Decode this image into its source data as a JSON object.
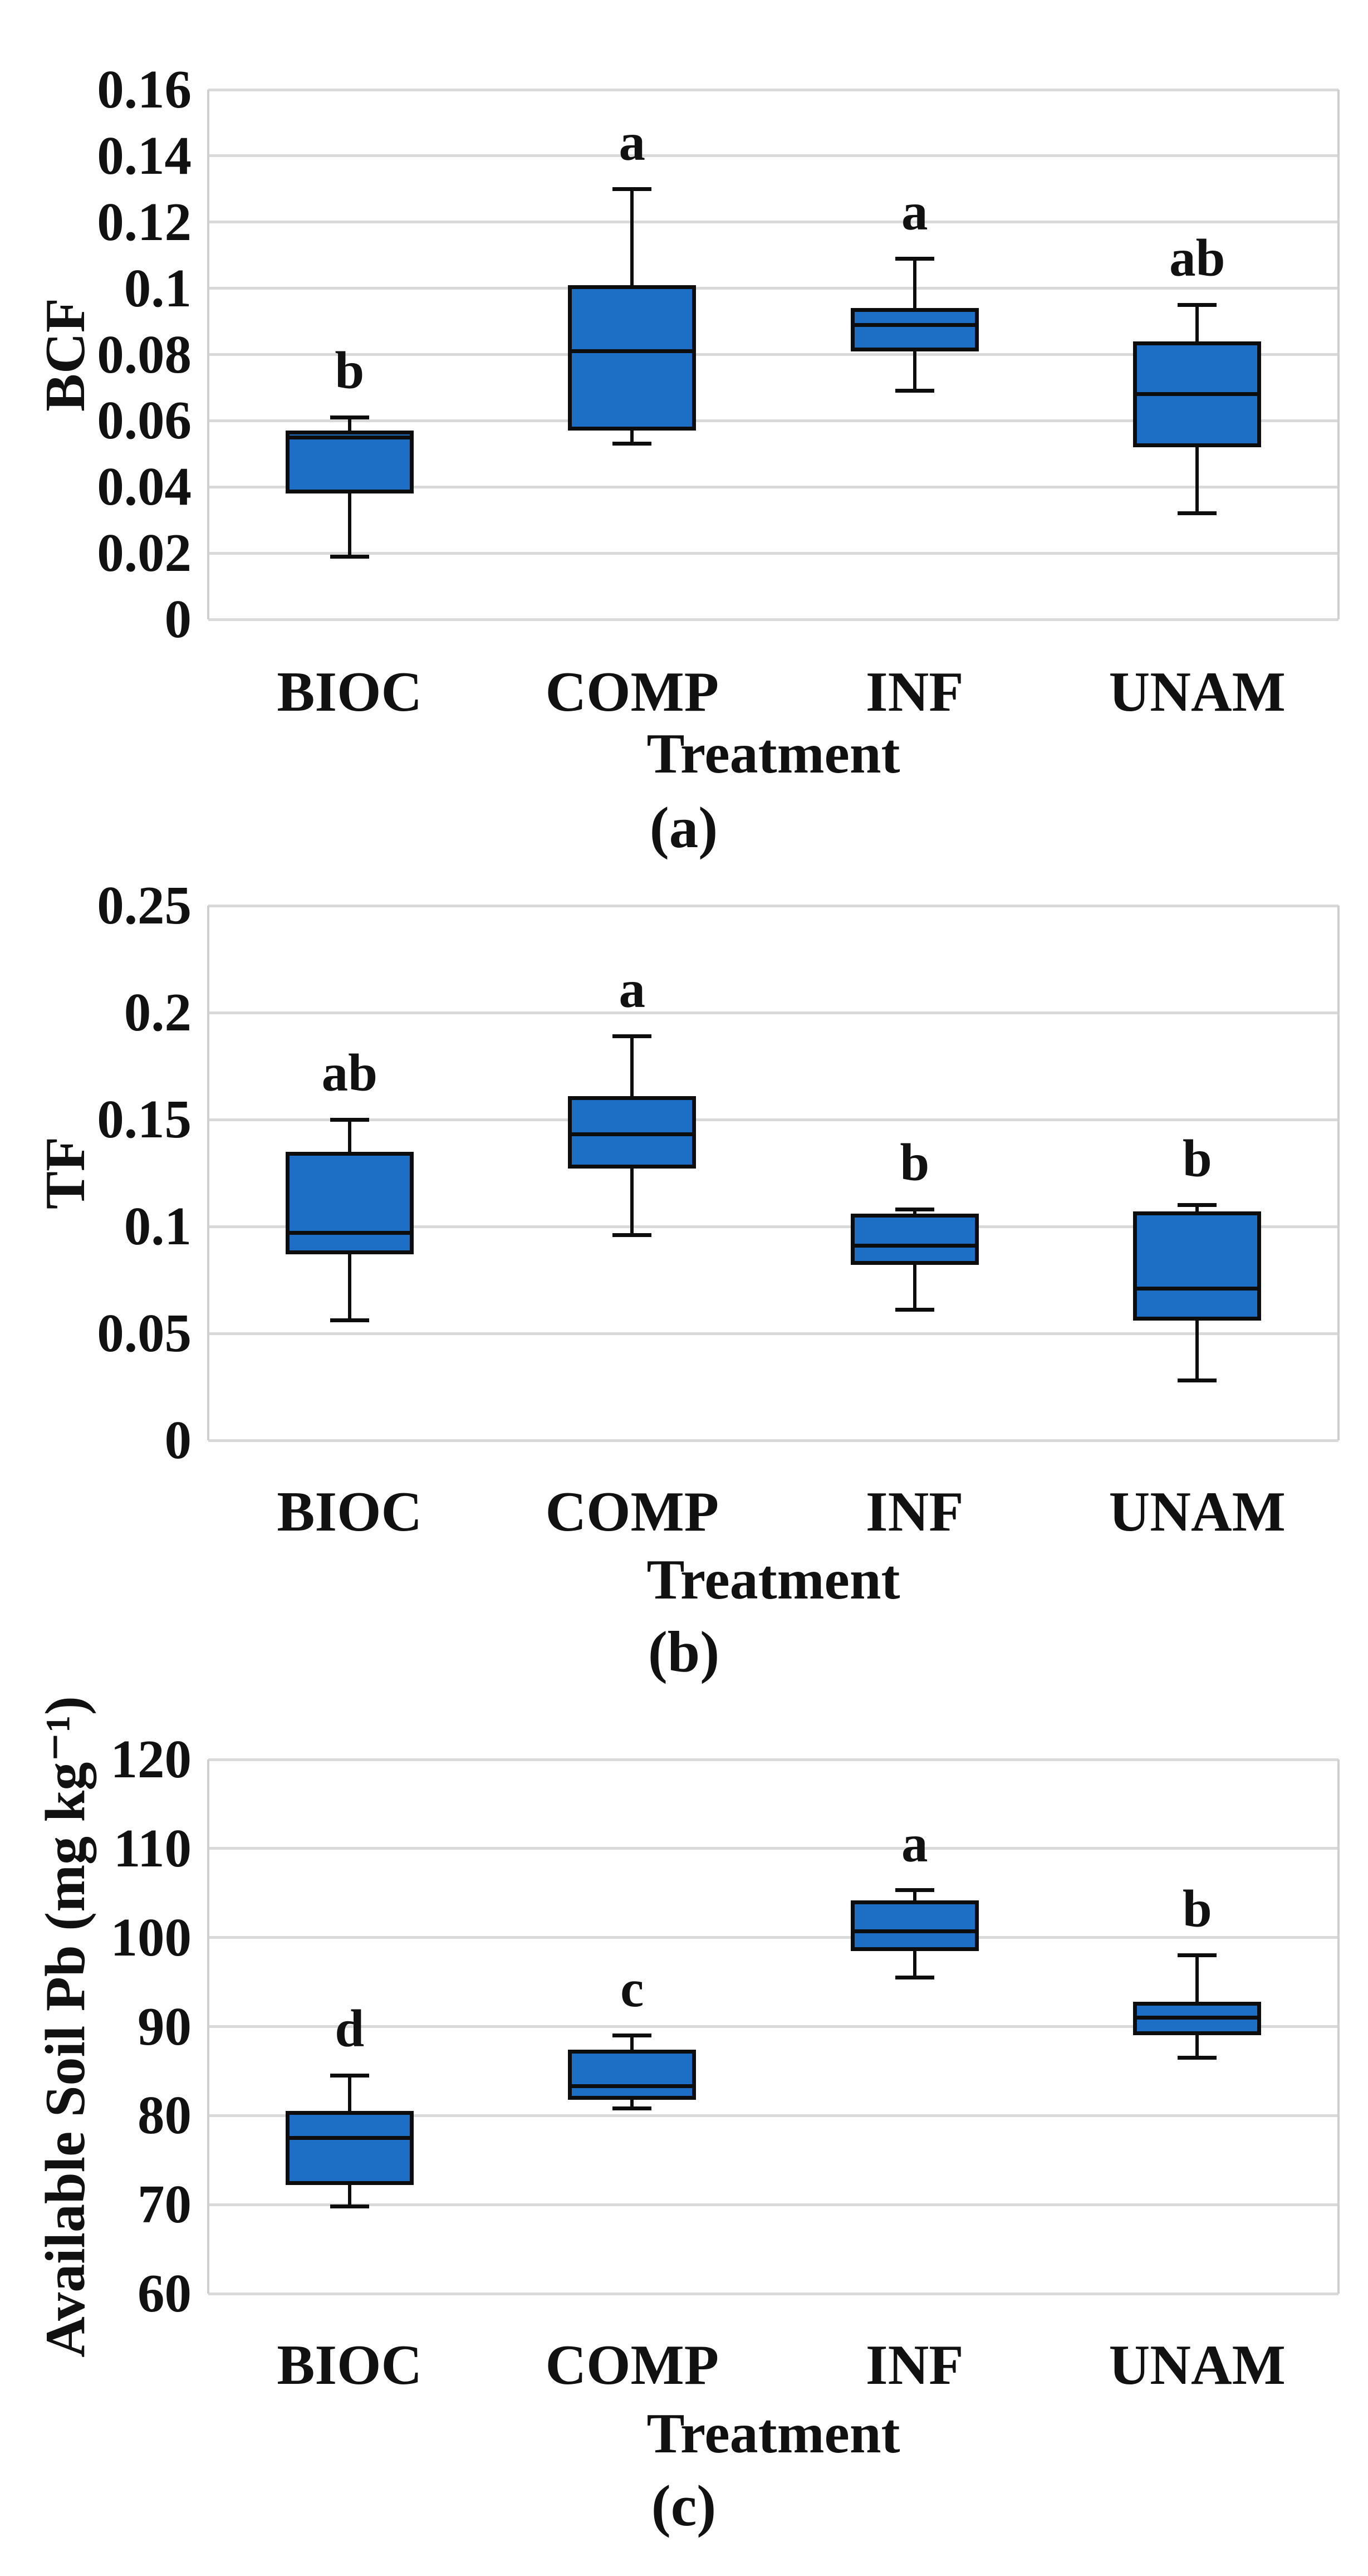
{
  "figure": {
    "background": "#ffffff",
    "box_fill": "#1d6fc6",
    "box_border": "#0d0d0d",
    "gridline_color": "#d9d9d9",
    "axis_border_color": "#cfcfcf",
    "categories": [
      "BIOC",
      "COMP",
      "INF",
      "UNAM"
    ],
    "x_axis_title": "Treatment"
  },
  "chart_data": [
    {
      "type": "box",
      "panel_label": "(a)",
      "ylabel": "BCF",
      "xlabel": "Treatment",
      "categories": [
        "BIOC",
        "COMP",
        "INF",
        "UNAM"
      ],
      "ylim": [
        0,
        0.16
      ],
      "yticks": [
        0,
        0.02,
        0.04,
        0.06,
        0.08,
        0.1,
        0.12,
        0.14,
        0.16
      ],
      "ytick_labels": [
        "0",
        "0.02",
        "0.04",
        "0.06",
        "0.08",
        "0.1",
        "0.12",
        "0.14",
        "0.16"
      ],
      "grid": true,
      "legend": "none",
      "series": [
        {
          "category": "BIOC",
          "sig_letter": "b",
          "whisker_low": 0.019,
          "q1": 0.038,
          "median": 0.055,
          "q3": 0.057,
          "whisker_high": 0.061
        },
        {
          "category": "COMP",
          "sig_letter": "a",
          "whisker_low": 0.053,
          "q1": 0.057,
          "median": 0.081,
          "q3": 0.101,
          "whisker_high": 0.13
        },
        {
          "category": "INF",
          "sig_letter": "a",
          "whisker_low": 0.069,
          "q1": 0.081,
          "median": 0.089,
          "q3": 0.094,
          "whisker_high": 0.109
        },
        {
          "category": "UNAM",
          "sig_letter": "ab",
          "whisker_low": 0.032,
          "q1": 0.052,
          "median": 0.068,
          "q3": 0.084,
          "whisker_high": 0.095
        }
      ]
    },
    {
      "type": "box",
      "panel_label": "(b)",
      "ylabel": "TF",
      "xlabel": "Treatment",
      "categories": [
        "BIOC",
        "COMP",
        "INF",
        "UNAM"
      ],
      "ylim": [
        0,
        0.25
      ],
      "yticks": [
        0,
        0.05,
        0.1,
        0.15,
        0.2,
        0.25
      ],
      "ytick_labels": [
        "0",
        "0.05",
        "0.1",
        "0.15",
        "0.2",
        "0.25"
      ],
      "grid": true,
      "legend": "none",
      "series": [
        {
          "category": "BIOC",
          "sig_letter": "ab",
          "whisker_low": 0.056,
          "q1": 0.087,
          "median": 0.097,
          "q3": 0.135,
          "whisker_high": 0.15
        },
        {
          "category": "COMP",
          "sig_letter": "a",
          "whisker_low": 0.096,
          "q1": 0.127,
          "median": 0.143,
          "q3": 0.161,
          "whisker_high": 0.189
        },
        {
          "category": "INF",
          "sig_letter": "b",
          "whisker_low": 0.061,
          "q1": 0.082,
          "median": 0.091,
          "q3": 0.106,
          "whisker_high": 0.108
        },
        {
          "category": "UNAM",
          "sig_letter": "b",
          "whisker_low": 0.028,
          "q1": 0.056,
          "median": 0.071,
          "q3": 0.107,
          "whisker_high": 0.11
        }
      ]
    },
    {
      "type": "box",
      "panel_label": "(c)",
      "ylabel": "Available Soil Pb (mg kg⁻¹)",
      "xlabel": "Treatment",
      "categories": [
        "BIOC",
        "COMP",
        "INF",
        "UNAM"
      ],
      "ylim": [
        60,
        120
      ],
      "yticks": [
        60,
        70,
        80,
        90,
        100,
        110,
        120
      ],
      "ytick_labels": [
        "60",
        "70",
        "80",
        "90",
        "100",
        "110",
        "120"
      ],
      "grid": true,
      "legend": "none",
      "series": [
        {
          "category": "BIOC",
          "sig_letter": "d",
          "whisker_low": 69.8,
          "q1": 72.2,
          "median": 77.5,
          "q3": 80.5,
          "whisker_high": 84.5
        },
        {
          "category": "COMP",
          "sig_letter": "c",
          "whisker_low": 80.8,
          "q1": 81.8,
          "median": 83.3,
          "q3": 87.4,
          "whisker_high": 89.0
        },
        {
          "category": "INF",
          "sig_letter": "a",
          "whisker_low": 95.5,
          "q1": 98.5,
          "median": 100.7,
          "q3": 104.2,
          "whisker_high": 105.3
        },
        {
          "category": "UNAM",
          "sig_letter": "b",
          "whisker_low": 86.5,
          "q1": 89.0,
          "median": 91.0,
          "q3": 92.8,
          "whisker_high": 98.0
        }
      ]
    }
  ]
}
